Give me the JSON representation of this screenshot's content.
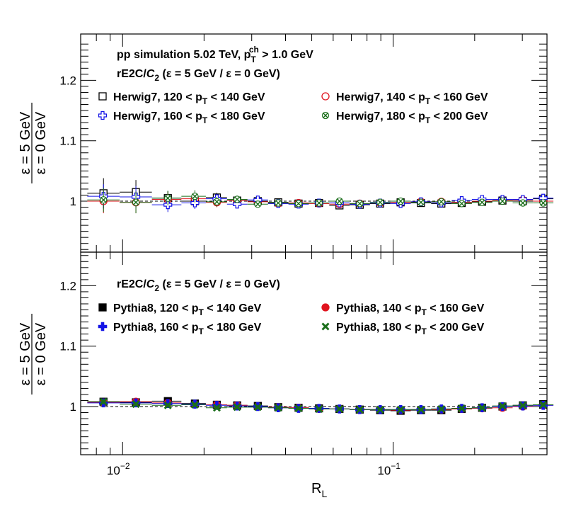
{
  "chart_data": [
    {
      "type": "scatter",
      "panel": "top",
      "ylabel_num": "ε = 5 GeV",
      "ylabel_den": "ε = 0 GeV",
      "xlabel": "R",
      "xlabel_sub": "L",
      "xscale": "log",
      "xlim": [
        0.007,
        0.37
      ],
      "ylim": [
        0.92,
        1.26
      ],
      "yticks": [
        {
          "v": 1,
          "t": "1"
        },
        {
          "v": 1.1,
          "t": "1.1"
        },
        {
          "v": 1.2,
          "t": "1.2"
        }
      ],
      "reference_line": 1,
      "annotations": [
        {
          "pre": "pp simulation 5.02 TeV, p",
          "sub": "T",
          "sup": "ch",
          "post": " > 1.0 GeV"
        },
        {
          "pre": "rE2C/",
          "ital": "C",
          "sub": "2",
          "post": " (ε = 5 GeV /  ε = 0 GeV)"
        }
      ],
      "x": [
        0.0085,
        0.0112,
        0.0147,
        0.0185,
        0.0223,
        0.0265,
        0.0316,
        0.0376,
        0.0447,
        0.0532,
        0.0633,
        0.0752,
        0.0895,
        0.1065,
        0.1266,
        0.1506,
        0.1791,
        0.213,
        0.2533,
        0.3013,
        0.3583
      ],
      "series": [
        {
          "name": "Herwig7, 120 < p_T < 140 GeV",
          "lpre": "Herwig7, 120 < p",
          "lpost": " < 140 GeV",
          "marker": "open-square",
          "color": "#000000",
          "values": [
            1.013,
            1.015,
            1.005,
            1.0,
            1.006,
            1.001,
            1.0,
            0.998,
            0.996,
            0.997,
            0.993,
            0.994,
            0.996,
            0.998,
            0.997,
            0.996,
            0.997,
            0.999,
            1.001,
            1.0,
            1.004
          ],
          "errors": [
            0.025,
            0.02,
            0.012,
            0.01,
            0.008,
            0.006,
            0.005,
            0.004,
            0.003,
            0.003,
            0.003,
            0.003,
            0.003,
            0.003,
            0.003,
            0.003,
            0.003,
            0.003,
            0.004,
            0.004,
            0.005
          ]
        },
        {
          "name": "Herwig7, 140 < p_T < 160 GeV",
          "lpre": "Herwig7, 140 < p",
          "lpost": " < 160 GeV",
          "marker": "open-circle",
          "color": "#e0141e",
          "values": [
            1.0,
            0.998,
            1.003,
            1.004,
            0.998,
            1.001,
            0.999,
            0.996,
            0.997,
            0.996,
            0.995,
            0.996,
            0.997,
            0.998,
            0.999,
            0.999,
            0.998,
            1.0,
            1.001,
            1.002,
            1.0
          ],
          "errors": [
            0.02,
            0.018,
            0.012,
            0.01,
            0.008,
            0.006,
            0.005,
            0.004,
            0.003,
            0.003,
            0.003,
            0.003,
            0.003,
            0.003,
            0.003,
            0.003,
            0.003,
            0.003,
            0.004,
            0.004,
            0.005
          ]
        },
        {
          "name": "Herwig7, 160 < p_T < 180 GeV",
          "lpre": "Herwig7, 160 < p",
          "lpost": " < 180 GeV",
          "marker": "open-cross",
          "color": "#1414e6",
          "values": [
            1.008,
            1.007,
            0.994,
            0.997,
            1.004,
            0.995,
            1.002,
            0.996,
            0.995,
            0.997,
            0.997,
            0.995,
            0.997,
            0.996,
            0.999,
            0.997,
            1.001,
            1.003,
            1.003,
            1.003,
            1.005
          ],
          "errors": [
            0.02,
            0.018,
            0.012,
            0.01,
            0.008,
            0.006,
            0.005,
            0.004,
            0.003,
            0.003,
            0.003,
            0.003,
            0.003,
            0.003,
            0.003,
            0.003,
            0.003,
            0.003,
            0.004,
            0.004,
            0.005
          ]
        },
        {
          "name": "Herwig7, 180 < p_T < 200 GeV",
          "lpre": "Herwig7, 180 < p",
          "lpost": " < 200 GeV",
          "marker": "open-x",
          "color": "#1a6e1a",
          "values": [
            1.002,
            0.998,
            1.005,
            1.008,
            0.999,
            1.003,
            0.995,
            0.997,
            0.996,
            0.997,
            1.0,
            0.996,
            0.998,
            1.0,
            0.998,
            0.999,
            0.996,
            0.998,
            1.0,
            0.997,
            0.997
          ],
          "errors": [
            0.02,
            0.018,
            0.012,
            0.01,
            0.008,
            0.006,
            0.005,
            0.004,
            0.003,
            0.003,
            0.003,
            0.003,
            0.003,
            0.003,
            0.003,
            0.003,
            0.003,
            0.003,
            0.004,
            0.004,
            0.005
          ]
        }
      ]
    },
    {
      "type": "scatter",
      "panel": "bottom",
      "ylabel_num": "ε = 5 GeV",
      "ylabel_den": "ε = 0 GeV",
      "xlabel": "R",
      "xlabel_sub": "L",
      "xscale": "log",
      "xlim": [
        0.007,
        0.37
      ],
      "ylim": [
        0.92,
        1.26
      ],
      "yticks": [
        {
          "v": 1,
          "t": "1"
        },
        {
          "v": 1.1,
          "t": "1.1"
        },
        {
          "v": 1.2,
          "t": "1.2"
        }
      ],
      "xticks": [
        {
          "v": 0.01,
          "base": "10",
          "exp": "−2"
        },
        {
          "v": 0.1,
          "base": "10",
          "exp": "−1"
        }
      ],
      "reference_line": 1,
      "annotations": [
        {
          "pre": "rE2C/",
          "ital": "C",
          "sub": "2",
          "post": " (ε = 5 GeV /  ε = 0 GeV)"
        }
      ],
      "x": [
        0.0085,
        0.0112,
        0.0147,
        0.0185,
        0.0223,
        0.0265,
        0.0316,
        0.0376,
        0.0447,
        0.0532,
        0.0633,
        0.0752,
        0.0895,
        0.1065,
        0.1266,
        0.1506,
        0.1791,
        0.213,
        0.2533,
        0.3013,
        0.3583
      ],
      "series": [
        {
          "name": "Pythia8, 120 < p_T < 140 GeV",
          "lpre": "Pythia8, 120 < p",
          "lpost": " < 140 GeV",
          "marker": "filled-square",
          "color": "#000000",
          "values": [
            1.008,
            1.007,
            1.009,
            1.005,
            1.003,
            1.002,
            1.001,
            0.999,
            0.998,
            0.997,
            0.996,
            0.995,
            0.994,
            0.993,
            0.994,
            0.994,
            0.996,
            0.998,
            1.0,
            1.002,
            1.003
          ],
          "errors": [
            0.004,
            0.003,
            0.003,
            0.002,
            0.002,
            0.002,
            0.002,
            0.002,
            0.002,
            0.002,
            0.002,
            0.002,
            0.002,
            0.002,
            0.002,
            0.002,
            0.002,
            0.002,
            0.002,
            0.002,
            0.003
          ]
        },
        {
          "name": "Pythia8, 140 < p_T < 160 GeV",
          "lpre": "Pythia8, 140 < p",
          "lpost": " < 160 GeV",
          "marker": "filled-circle",
          "color": "#e0141e",
          "values": [
            1.007,
            1.008,
            1.006,
            1.004,
            1.003,
            1.002,
            1.0,
            0.999,
            0.998,
            0.996,
            0.996,
            0.995,
            0.995,
            0.994,
            0.995,
            0.995,
            0.996,
            0.997,
            0.998,
            1.0,
            1.002
          ],
          "errors": [
            0.004,
            0.003,
            0.003,
            0.002,
            0.002,
            0.002,
            0.002,
            0.002,
            0.002,
            0.002,
            0.002,
            0.002,
            0.002,
            0.002,
            0.002,
            0.002,
            0.002,
            0.002,
            0.002,
            0.002,
            0.003
          ]
        },
        {
          "name": "Pythia8, 160 < p_T < 180 GeV",
          "lpre": "Pythia8, 160 < p",
          "lpost": " < 180 GeV",
          "marker": "filled-cross",
          "color": "#1414e6",
          "values": [
            1.006,
            1.006,
            1.005,
            1.004,
            1.002,
            1.001,
            1.0,
            0.998,
            0.997,
            0.997,
            0.996,
            0.995,
            0.995,
            0.995,
            0.995,
            0.996,
            0.997,
            0.998,
            1.0,
            1.001,
            1.002
          ],
          "errors": [
            0.004,
            0.003,
            0.003,
            0.002,
            0.002,
            0.002,
            0.002,
            0.002,
            0.002,
            0.002,
            0.002,
            0.002,
            0.002,
            0.002,
            0.002,
            0.002,
            0.002,
            0.002,
            0.002,
            0.002,
            0.003
          ]
        },
        {
          "name": "Pythia8, 180 < p_T < 200 GeV",
          "lpre": "Pythia8, 180 < p",
          "lpost": " < 200 GeV",
          "marker": "filled-x",
          "color": "#1a6e1a",
          "values": [
            1.008,
            1.004,
            1.002,
            1.003,
            0.998,
            0.999,
            0.999,
            0.998,
            0.997,
            0.996,
            0.996,
            0.995,
            0.995,
            0.995,
            0.995,
            0.996,
            0.997,
            0.998,
            1.001,
            1.002,
            1.003
          ],
          "errors": [
            0.004,
            0.003,
            0.003,
            0.002,
            0.002,
            0.002,
            0.002,
            0.002,
            0.002,
            0.002,
            0.002,
            0.002,
            0.002,
            0.002,
            0.002,
            0.002,
            0.002,
            0.002,
            0.002,
            0.002,
            0.003
          ]
        }
      ]
    }
  ]
}
